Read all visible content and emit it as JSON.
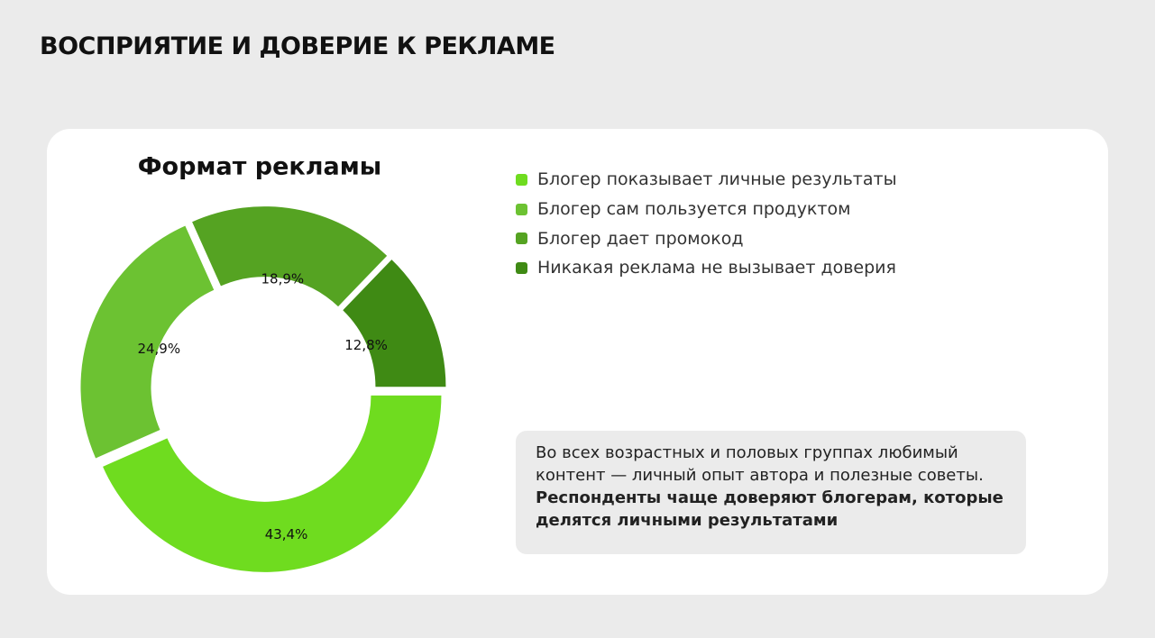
{
  "page_title": "ВОСПРИЯТИЕ И ДОВЕРИЕ К РЕКЛАМЕ",
  "chart_data": {
    "type": "pie",
    "title": "Формат рекламы",
    "categories": [
      "Блогер показывает личные результаты",
      "Блогер сам пользуется продуктом",
      "Блогер дает промокод",
      "Никакая реклама не вызывает доверия"
    ],
    "values": [
      43.4,
      24.9,
      18.9,
      12.8
    ],
    "value_labels": [
      "43,4%",
      "24,9%",
      "18,9%",
      "12,8%"
    ],
    "colors": [
      "#6fdc1f",
      "#6cc232",
      "#55a322",
      "#3f8a14"
    ]
  },
  "note": {
    "text": "Во всех возрастных и половых группах любимый контент — личный опыт автора и полезные советы.",
    "bold": "Респонденты чаще доверяют блогерам, которые делятся личными результатами"
  }
}
